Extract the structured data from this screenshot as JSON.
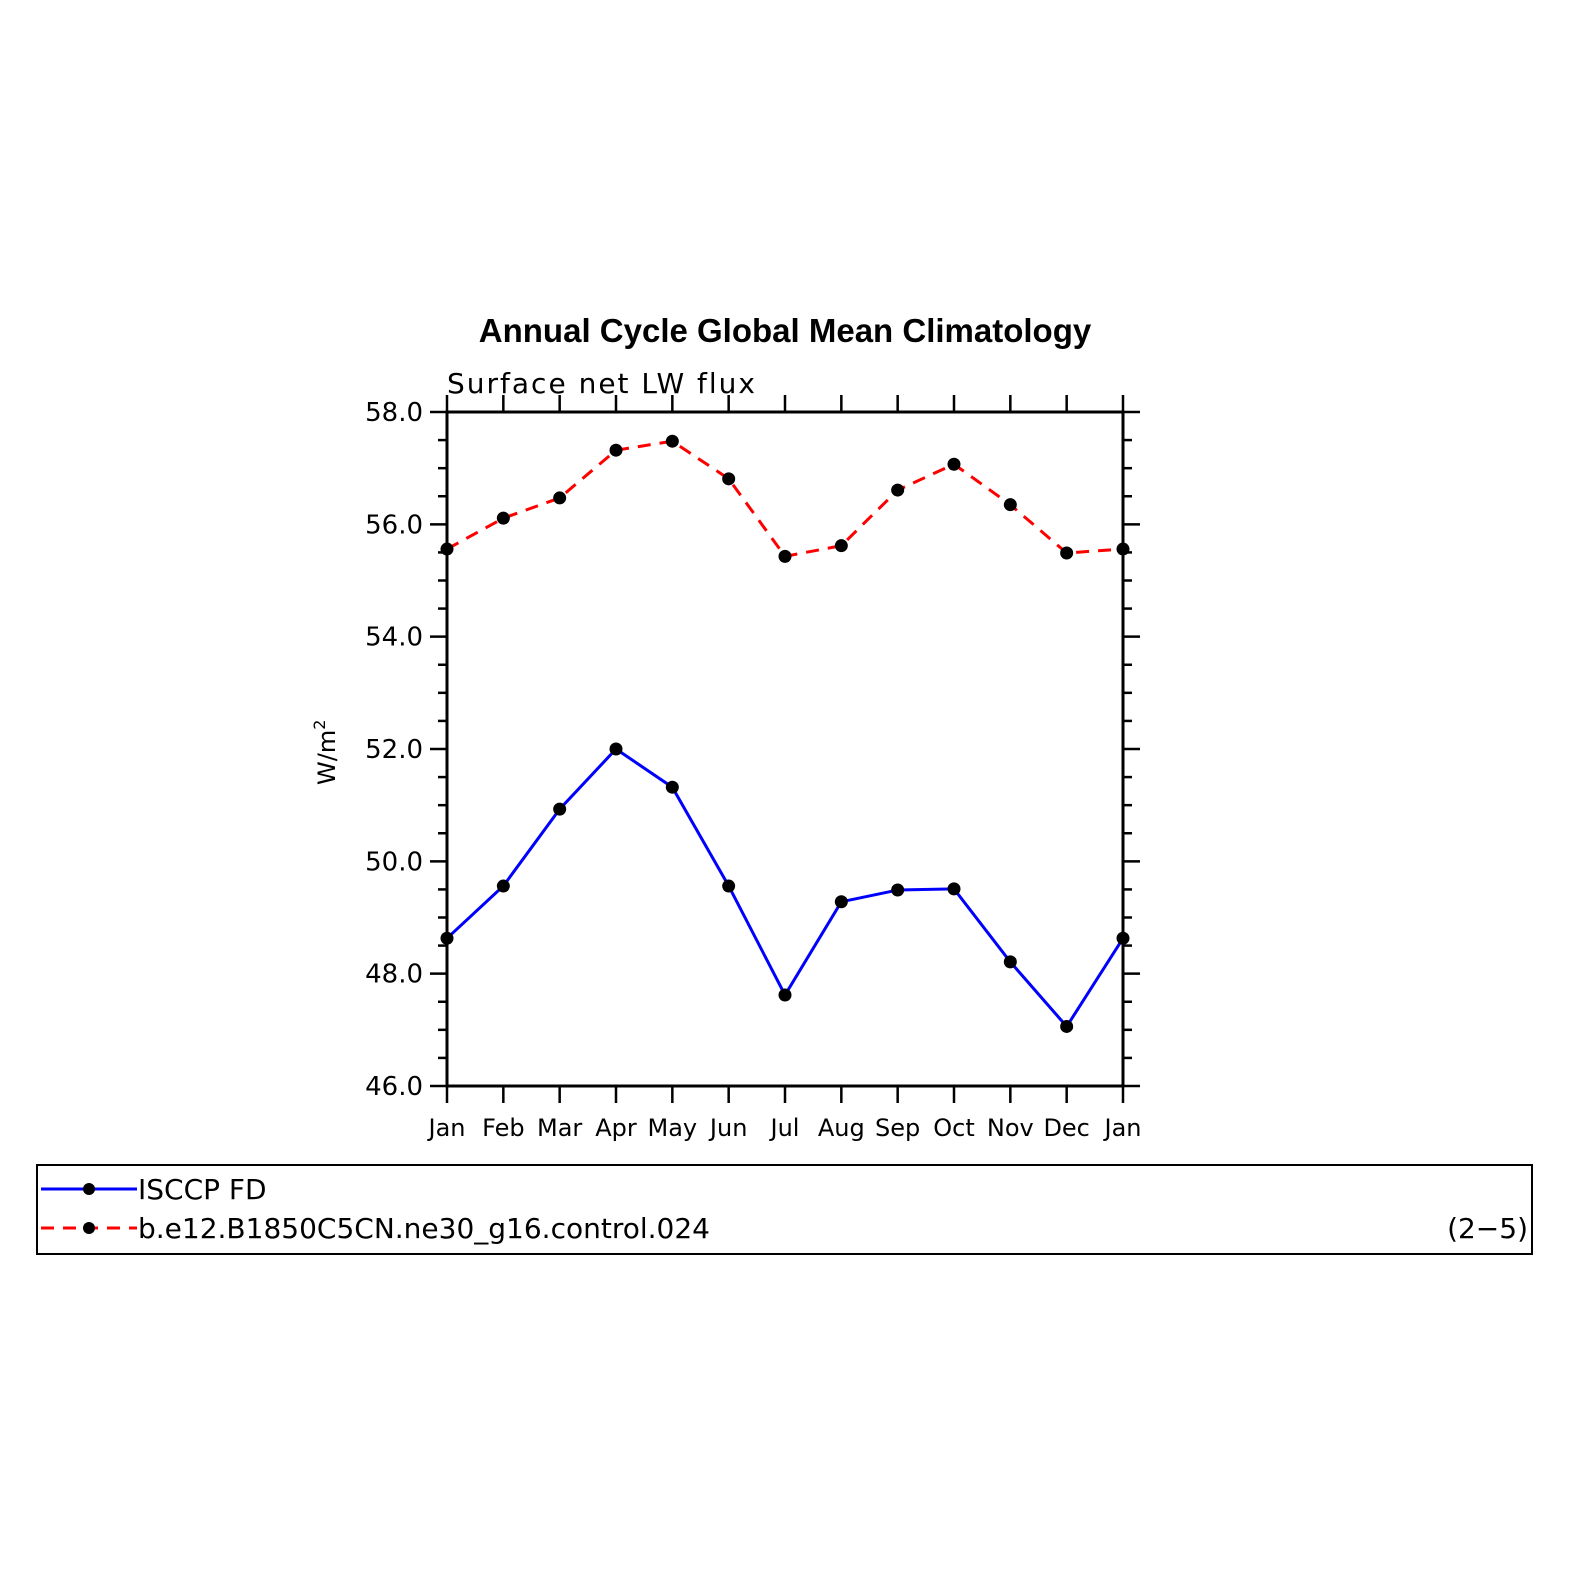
{
  "chart_data": {
    "type": "line",
    "title": "Annual Cycle Global Mean Climatology",
    "subtitle": "Surface net LW flux",
    "ylabel": "W/m",
    "ylabel_sup": "2",
    "ylim": [
      46.0,
      58.0
    ],
    "yticks": [
      "46.0",
      "48.0",
      "50.0",
      "52.0",
      "54.0",
      "56.0",
      "58.0"
    ],
    "categories": [
      "Jan",
      "Feb",
      "Mar",
      "Apr",
      "May",
      "Jun",
      "Jul",
      "Aug",
      "Sep",
      "Oct",
      "Nov",
      "Dec",
      "Jan"
    ],
    "series": [
      {
        "name": "ISCCP FD",
        "color": "#0000ff",
        "dashed": false,
        "values": [
          48.63,
          49.56,
          50.93,
          52.0,
          51.32,
          49.56,
          47.62,
          49.28,
          49.49,
          49.51,
          48.21,
          47.06,
          48.63
        ]
      },
      {
        "name": "b.e12.B1850C5CN.ne30_g16.control.024",
        "color": "#ff0000",
        "dashed": true,
        "values": [
          55.56,
          56.11,
          56.47,
          57.32,
          57.48,
          56.81,
          55.43,
          55.62,
          56.61,
          57.07,
          56.35,
          55.49,
          55.56
        ]
      }
    ],
    "panel_label": "(2−5)",
    "legend_position": "bottom"
  }
}
